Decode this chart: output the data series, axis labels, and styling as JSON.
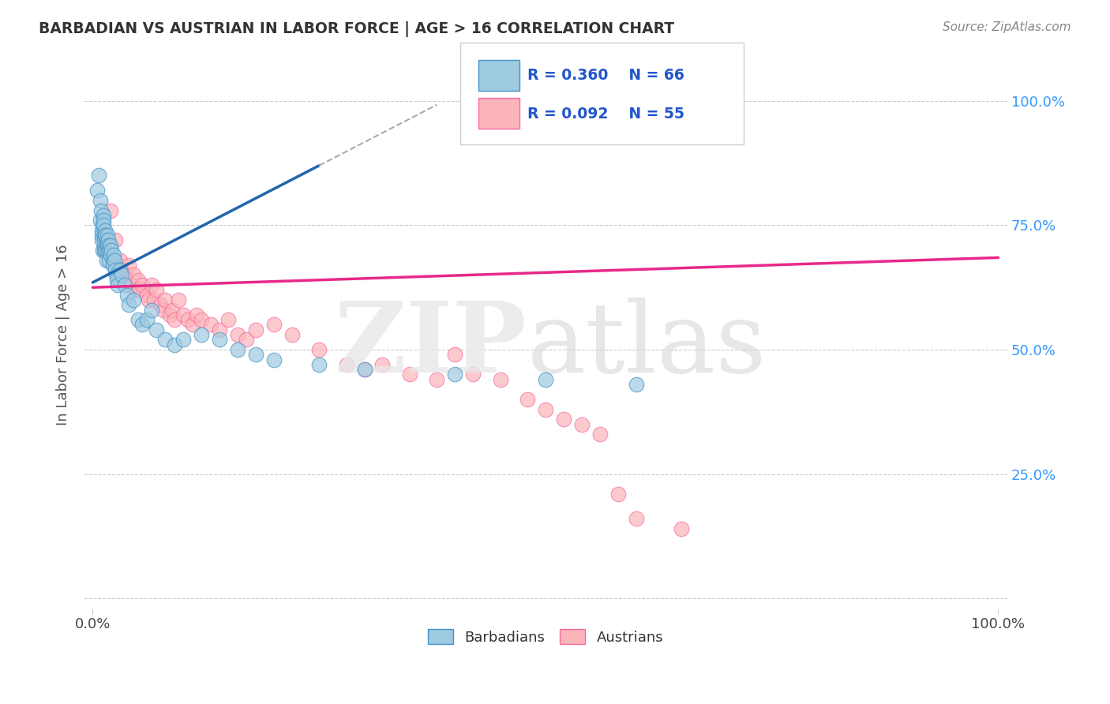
{
  "title": "BARBADIAN VS AUSTRIAN IN LABOR FORCE | AGE > 16 CORRELATION CHART",
  "source": "Source: ZipAtlas.com",
  "ylabel": "In Labor Force | Age > 16",
  "xlim": [
    0.0,
    1.0
  ],
  "ylim": [
    0.0,
    1.0
  ],
  "blue_R": 0.36,
  "blue_N": 66,
  "pink_R": 0.092,
  "pink_N": 55,
  "blue_color": "#9ecae1",
  "pink_color": "#fbb4b9",
  "blue_fill": "#9ecae1",
  "pink_fill": "#fbb4b9",
  "blue_edge": "#4292c6",
  "pink_edge": "#f768a1",
  "blue_line_color": "#2166ac",
  "pink_line_color": "#e7298a",
  "legend_blue_label": "Barbadians",
  "legend_pink_label": "Austrians",
  "legend_text_color": "#2255cc",
  "grid_color": "#cccccc",
  "title_color": "#333333",
  "source_color": "#888888",
  "blue_trend_x0": 0.0,
  "blue_trend_y0": 0.635,
  "blue_trend_x1": 0.25,
  "blue_trend_y1": 0.87,
  "pink_trend_x0": 0.0,
  "pink_trend_y0": 0.625,
  "pink_trend_x1": 1.0,
  "pink_trend_y1": 0.685,
  "blue_scatter_x": [
    0.005,
    0.007,
    0.008,
    0.008,
    0.009,
    0.01,
    0.01,
    0.01,
    0.011,
    0.011,
    0.012,
    0.012,
    0.012,
    0.013,
    0.013,
    0.013,
    0.013,
    0.014,
    0.014,
    0.014,
    0.015,
    0.015,
    0.015,
    0.015,
    0.016,
    0.016,
    0.017,
    0.017,
    0.018,
    0.018,
    0.019,
    0.02,
    0.02,
    0.021,
    0.022,
    0.022,
    0.023,
    0.024,
    0.025,
    0.026,
    0.027,
    0.028,
    0.03,
    0.032,
    0.035,
    0.038,
    0.04,
    0.045,
    0.05,
    0.055,
    0.06,
    0.065,
    0.07,
    0.08,
    0.09,
    0.1,
    0.12,
    0.14,
    0.16,
    0.18,
    0.2,
    0.25,
    0.3,
    0.4,
    0.5,
    0.6
  ],
  "blue_scatter_y": [
    0.82,
    0.85,
    0.8,
    0.76,
    0.78,
    0.74,
    0.73,
    0.72,
    0.75,
    0.7,
    0.77,
    0.76,
    0.75,
    0.73,
    0.72,
    0.71,
    0.7,
    0.74,
    0.73,
    0.7,
    0.72,
    0.71,
    0.7,
    0.68,
    0.73,
    0.71,
    0.72,
    0.7,
    0.71,
    0.68,
    0.7,
    0.71,
    0.69,
    0.7,
    0.68,
    0.67,
    0.69,
    0.68,
    0.66,
    0.65,
    0.64,
    0.63,
    0.66,
    0.65,
    0.63,
    0.61,
    0.59,
    0.6,
    0.56,
    0.55,
    0.56,
    0.58,
    0.54,
    0.52,
    0.51,
    0.52,
    0.53,
    0.52,
    0.5,
    0.49,
    0.48,
    0.47,
    0.46,
    0.45,
    0.44,
    0.43
  ],
  "pink_scatter_x": [
    0.02,
    0.025,
    0.03,
    0.032,
    0.035,
    0.038,
    0.04,
    0.042,
    0.045,
    0.048,
    0.05,
    0.052,
    0.055,
    0.06,
    0.062,
    0.065,
    0.068,
    0.07,
    0.075,
    0.078,
    0.08,
    0.085,
    0.088,
    0.09,
    0.095,
    0.1,
    0.105,
    0.11,
    0.115,
    0.12,
    0.13,
    0.14,
    0.15,
    0.16,
    0.17,
    0.18,
    0.2,
    0.22,
    0.25,
    0.28,
    0.3,
    0.32,
    0.35,
    0.38,
    0.4,
    0.42,
    0.45,
    0.48,
    0.5,
    0.52,
    0.54,
    0.56,
    0.58,
    0.6,
    0.65
  ],
  "pink_scatter_y": [
    0.78,
    0.72,
    0.68,
    0.66,
    0.65,
    0.64,
    0.67,
    0.63,
    0.65,
    0.62,
    0.64,
    0.62,
    0.63,
    0.61,
    0.6,
    0.63,
    0.6,
    0.62,
    0.59,
    0.58,
    0.6,
    0.57,
    0.58,
    0.56,
    0.6,
    0.57,
    0.56,
    0.55,
    0.57,
    0.56,
    0.55,
    0.54,
    0.56,
    0.53,
    0.52,
    0.54,
    0.55,
    0.53,
    0.5,
    0.47,
    0.46,
    0.47,
    0.45,
    0.44,
    0.49,
    0.45,
    0.44,
    0.4,
    0.38,
    0.36,
    0.35,
    0.33,
    0.21,
    0.16,
    0.14
  ]
}
